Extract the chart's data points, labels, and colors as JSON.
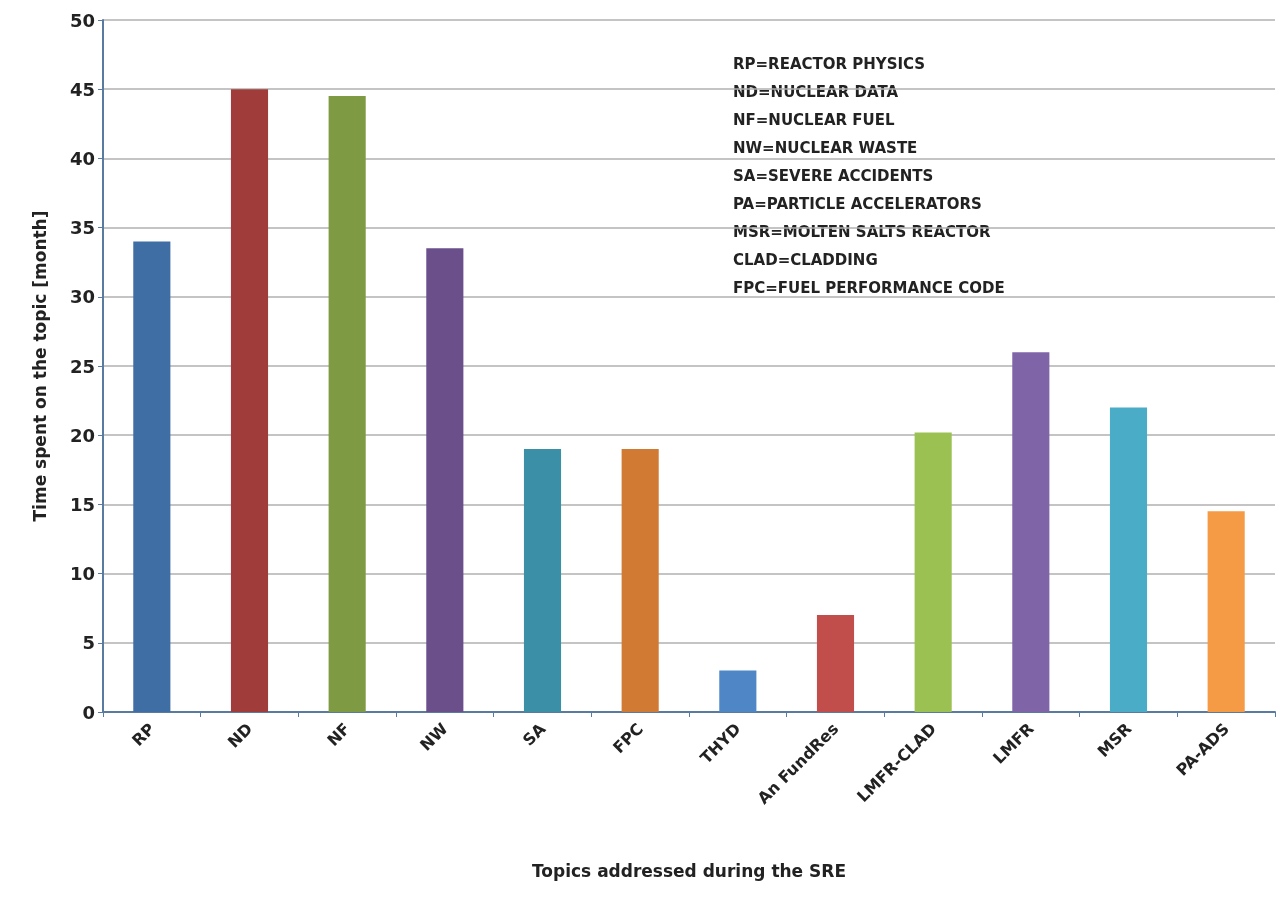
{
  "chart_data": {
    "type": "bar",
    "xlabel": "Topics addressed during the SRE",
    "ylabel": "Time spent on the topic [month]",
    "categories": [
      "RP",
      "ND",
      "NF",
      "NW",
      "SA",
      "FPC",
      "THYD",
      "An FundRes",
      "LMFR-CLAD",
      "LMFR",
      "MSR",
      "PA-ADS"
    ],
    "values": [
      34,
      45,
      44.5,
      33.5,
      19,
      19,
      3,
      7,
      20.2,
      26,
      22,
      14.5
    ],
    "colors": [
      "#3f6ea5",
      "#a03c3a",
      "#7e9b44",
      "#6a4f8b",
      "#3b8fa6",
      "#d07a33",
      "#4f86c6",
      "#c24e4c",
      "#9bc153",
      "#8064a8",
      "#4aacc6",
      "#f59a45"
    ],
    "ylim": [
      0,
      50
    ],
    "yticks": [
      0,
      5,
      10,
      15,
      20,
      25,
      30,
      35,
      40,
      45,
      50
    ],
    "grid": "y",
    "annotations": [
      "RP=REACTOR PHYSICS",
      "ND=NUCLEAR DATA",
      "NF=NUCLEAR FUEL",
      "NW=NUCLEAR WASTE",
      "SA=SEVERE ACCIDENTS",
      "PA=PARTICLE ACCELERATORS",
      "MSR=MOLTEN SALTS REACTOR",
      "CLAD=CLADDING",
      "FPC=FUEL PERFORMANCE CODE"
    ]
  }
}
